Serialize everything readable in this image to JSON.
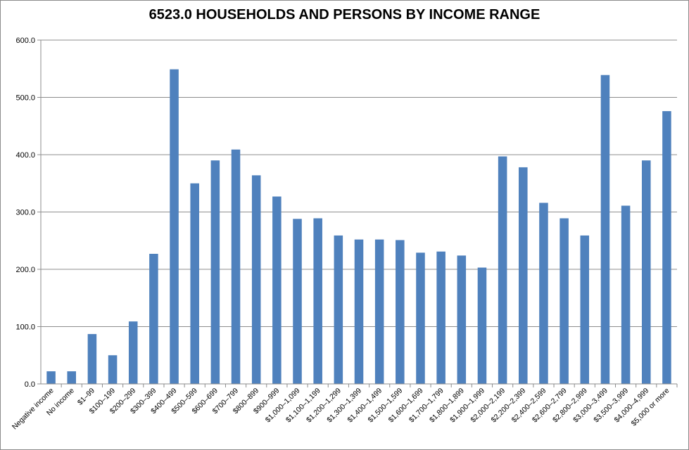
{
  "chart_data": {
    "type": "bar",
    "title": "6523.0 HOUSEHOLDS AND PERSONS BY INCOME RANGE",
    "xlabel": "",
    "ylabel": "",
    "ylim": [
      0,
      600
    ],
    "yticks": [
      "0.0",
      "100.0",
      "200.0",
      "300.0",
      "400.0",
      "500.0",
      "600.0"
    ],
    "grid": true,
    "color": "#4f81bd",
    "categories": [
      "Negative income",
      "No income",
      "$1–99",
      "$100–199",
      "$200–299",
      "$300–399",
      "$400–499",
      "$500–599",
      "$600–699",
      "$700–799",
      "$800–899",
      "$900–999",
      "$1,000–1,099",
      "$1,100–1,199",
      "$1,200–1,299",
      "$1,300–1,399",
      "$1,400–1,499",
      "$1,500–1,599",
      "$1,600–1,699",
      "$1,700–1,799",
      "$1,800–1,899",
      "$1,900–1,999",
      "$2,000–2,199",
      "$2,200–2,399",
      "$2,400–2,599",
      "$2,600–2,799",
      "$2,800–2,999",
      "$3,000–3,499",
      "$3,500–3,999",
      "$4,000–4,999",
      "$5,000 or more"
    ],
    "values": [
      22,
      22,
      87,
      50,
      109,
      227,
      549,
      350,
      390,
      409,
      364,
      327,
      288,
      289,
      259,
      252,
      252,
      251,
      229,
      231,
      224,
      203,
      397,
      378,
      316,
      289,
      259,
      539,
      311,
      390,
      476
    ]
  }
}
